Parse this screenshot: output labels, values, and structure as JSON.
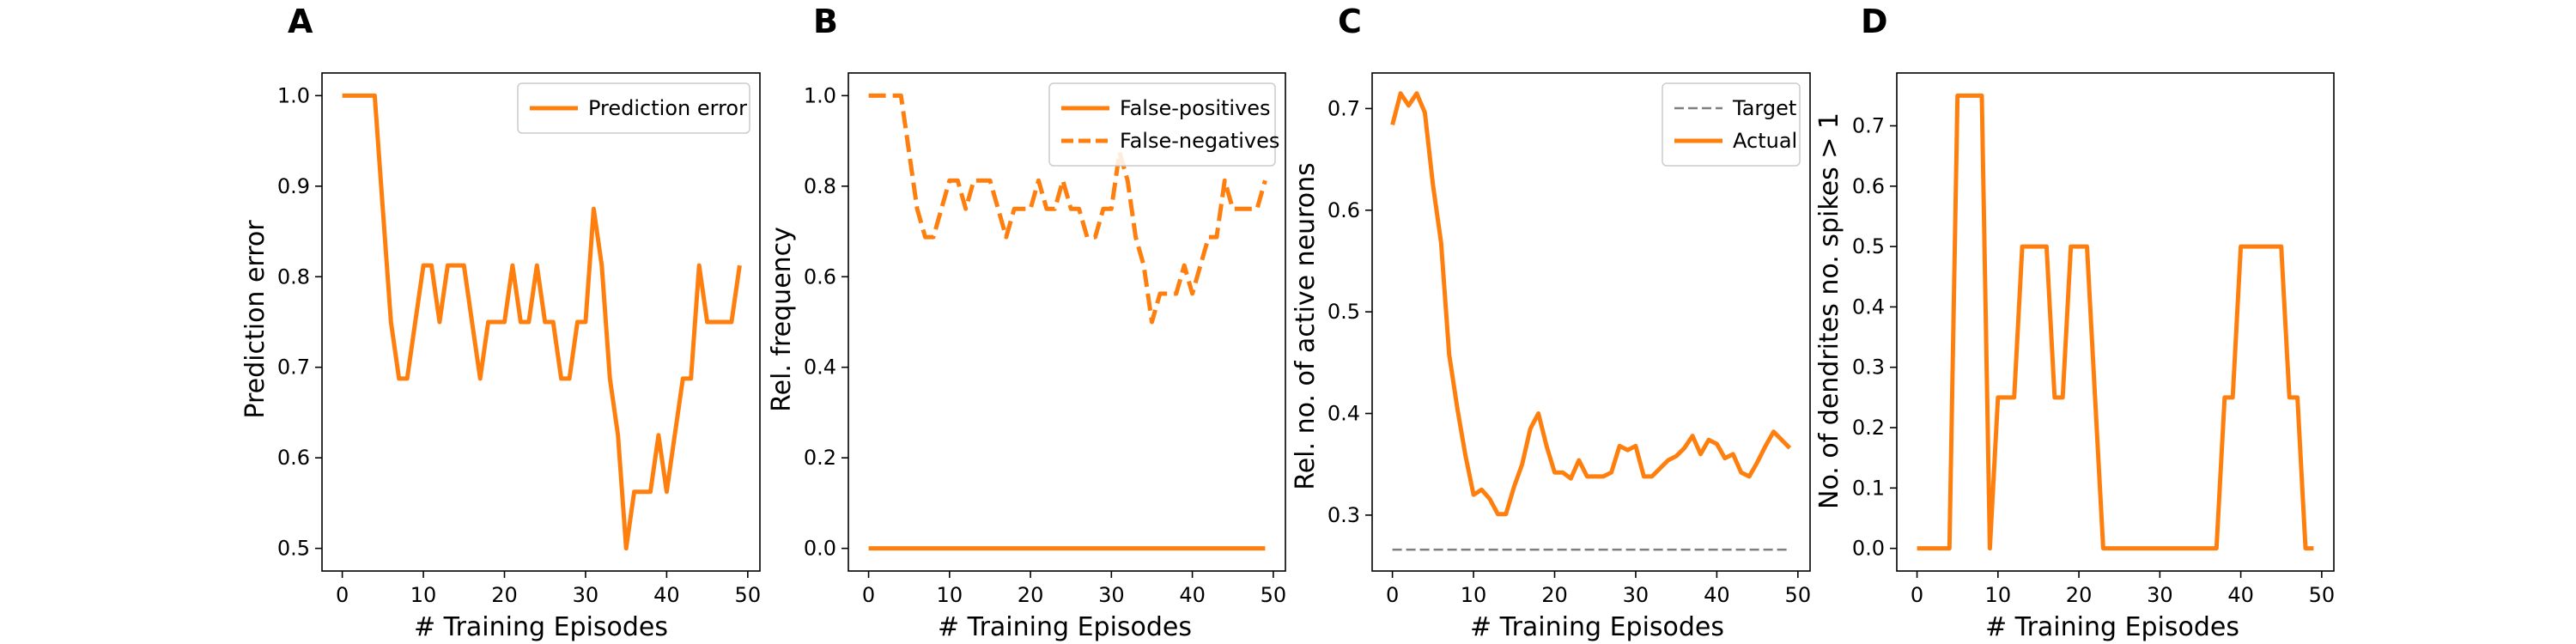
{
  "colors": {
    "series": "#ff7f0e",
    "target": "#7f7f7f",
    "axis": "#000000",
    "legend_border": "#cccccc"
  },
  "chart_data": [
    {
      "panel": "A",
      "type": "line",
      "xlabel": "# Training Episodes",
      "ylabel": "Prediction error",
      "xlim": [
        -2.5,
        51.5
      ],
      "ylim": [
        0.475,
        1.025
      ],
      "xticks": [
        0,
        10,
        20,
        30,
        40,
        50
      ],
      "yticks": [
        0.5,
        0.6,
        0.7,
        0.8,
        0.9,
        1.0
      ],
      "ytick_format": 1,
      "legend": "top-right",
      "x": [
        0,
        1,
        2,
        3,
        4,
        5,
        6,
        7,
        8,
        9,
        10,
        11,
        12,
        13,
        14,
        15,
        16,
        17,
        18,
        19,
        20,
        21,
        22,
        23,
        24,
        25,
        26,
        27,
        28,
        29,
        30,
        31,
        32,
        33,
        34,
        35,
        36,
        37,
        38,
        39,
        40,
        41,
        42,
        43,
        44,
        45,
        46,
        47,
        48,
        49
      ],
      "series": [
        {
          "name": "Prediction error",
          "style": "solid",
          "values": [
            1.0,
            1.0,
            1.0,
            1.0,
            1.0,
            0.875,
            0.75,
            0.6875,
            0.6875,
            0.75,
            0.8125,
            0.8125,
            0.75,
            0.8125,
            0.8125,
            0.8125,
            0.75,
            0.6875,
            0.75,
            0.75,
            0.75,
            0.8125,
            0.75,
            0.75,
            0.8125,
            0.75,
            0.75,
            0.6875,
            0.6875,
            0.75,
            0.75,
            0.875,
            0.8125,
            0.6875,
            0.625,
            0.5,
            0.5625,
            0.5625,
            0.5625,
            0.625,
            0.5625,
            0.625,
            0.6875,
            0.6875,
            0.8125,
            0.75,
            0.75,
            0.75,
            0.75,
            0.8125
          ]
        }
      ]
    },
    {
      "panel": "B",
      "type": "line",
      "xlabel": "# Training Episodes",
      "ylabel": "Rel. frequency",
      "xlim": [
        -2.5,
        51.5
      ],
      "ylim": [
        -0.05,
        1.05
      ],
      "xticks": [
        0,
        10,
        20,
        30,
        40,
        50
      ],
      "yticks": [
        0.0,
        0.2,
        0.4,
        0.6,
        0.8,
        1.0
      ],
      "ytick_format": 1,
      "legend": "top-right",
      "x": [
        0,
        1,
        2,
        3,
        4,
        5,
        6,
        7,
        8,
        9,
        10,
        11,
        12,
        13,
        14,
        15,
        16,
        17,
        18,
        19,
        20,
        21,
        22,
        23,
        24,
        25,
        26,
        27,
        28,
        29,
        30,
        31,
        32,
        33,
        34,
        35,
        36,
        37,
        38,
        39,
        40,
        41,
        42,
        43,
        44,
        45,
        46,
        47,
        48,
        49
      ],
      "series": [
        {
          "name": "False-positives",
          "style": "solid",
          "values": [
            0,
            0,
            0,
            0,
            0,
            0,
            0,
            0,
            0,
            0,
            0,
            0,
            0,
            0,
            0,
            0,
            0,
            0,
            0,
            0,
            0,
            0,
            0,
            0,
            0,
            0,
            0,
            0,
            0,
            0,
            0,
            0,
            0,
            0,
            0,
            0,
            0,
            0,
            0,
            0,
            0,
            0,
            0,
            0,
            0,
            0,
            0,
            0,
            0,
            0
          ]
        },
        {
          "name": "False-negatives",
          "style": "dashed",
          "values": [
            1.0,
            1.0,
            1.0,
            1.0,
            1.0,
            0.875,
            0.75,
            0.6875,
            0.6875,
            0.75,
            0.8125,
            0.8125,
            0.75,
            0.8125,
            0.8125,
            0.8125,
            0.75,
            0.6875,
            0.75,
            0.75,
            0.75,
            0.8125,
            0.75,
            0.75,
            0.8125,
            0.75,
            0.75,
            0.6875,
            0.6875,
            0.75,
            0.75,
            0.875,
            0.8125,
            0.6875,
            0.625,
            0.5,
            0.5625,
            0.5625,
            0.5625,
            0.625,
            0.5625,
            0.625,
            0.6875,
            0.6875,
            0.8125,
            0.75,
            0.75,
            0.75,
            0.75,
            0.8125
          ]
        }
      ]
    },
    {
      "panel": "C",
      "type": "line",
      "xlabel": "# Training Episodes",
      "ylabel": "Rel. no. of active neurons",
      "xlim": [
        -2.5,
        51.5
      ],
      "ylim": [
        0.245,
        0.735
      ],
      "xticks": [
        0,
        10,
        20,
        30,
        40,
        50
      ],
      "yticks": [
        0.3,
        0.4,
        0.5,
        0.6,
        0.7
      ],
      "ytick_format": 1,
      "legend": "top-right",
      "x": [
        0,
        1,
        2,
        3,
        4,
        5,
        6,
        7,
        8,
        9,
        10,
        11,
        12,
        13,
        14,
        15,
        16,
        17,
        18,
        19,
        20,
        21,
        22,
        23,
        24,
        25,
        26,
        27,
        28,
        29,
        30,
        31,
        32,
        33,
        34,
        35,
        36,
        37,
        38,
        39,
        40,
        41,
        42,
        43,
        44,
        45,
        46,
        47,
        48,
        49
      ],
      "series": [
        {
          "name": "Target",
          "style": "dashed-thin",
          "color_key": "target",
          "values": [
            0.266,
            0.266,
            0.266,
            0.266,
            0.266,
            0.266,
            0.266,
            0.266,
            0.266,
            0.266,
            0.266,
            0.266,
            0.266,
            0.266,
            0.266,
            0.266,
            0.266,
            0.266,
            0.266,
            0.266,
            0.266,
            0.266,
            0.266,
            0.266,
            0.266,
            0.266,
            0.266,
            0.266,
            0.266,
            0.266,
            0.266,
            0.266,
            0.266,
            0.266,
            0.266,
            0.266,
            0.266,
            0.266,
            0.266,
            0.266,
            0.266,
            0.266,
            0.266,
            0.266,
            0.266,
            0.266,
            0.266,
            0.266,
            0.266,
            0.266
          ]
        },
        {
          "name": "Actual",
          "style": "solid",
          "values": [
            0.684,
            0.715,
            0.703,
            0.715,
            0.696,
            0.625,
            0.568,
            0.458,
            0.405,
            0.359,
            0.32,
            0.325,
            0.316,
            0.301,
            0.301,
            0.328,
            0.35,
            0.385,
            0.4,
            0.368,
            0.342,
            0.342,
            0.336,
            0.354,
            0.338,
            0.338,
            0.338,
            0.342,
            0.368,
            0.364,
            0.368,
            0.338,
            0.338,
            0.346,
            0.354,
            0.358,
            0.366,
            0.378,
            0.36,
            0.374,
            0.37,
            0.356,
            0.36,
            0.342,
            0.338,
            0.352,
            0.368,
            0.382,
            0.374,
            0.366
          ]
        }
      ]
    },
    {
      "panel": "D",
      "type": "line",
      "xlabel": "# Training Episodes",
      "ylabel": "No. of dendrites no. spikes > 1",
      "xlim": [
        -2.5,
        51.5
      ],
      "ylim": [
        -0.0375,
        0.7875
      ],
      "xticks": [
        0,
        10,
        20,
        30,
        40,
        50
      ],
      "yticks": [
        0.0,
        0.1,
        0.2,
        0.3,
        0.4,
        0.5,
        0.6,
        0.7
      ],
      "ytick_format": 1,
      "legend": null,
      "x": [
        0,
        1,
        2,
        3,
        4,
        5,
        6,
        7,
        8,
        9,
        10,
        11,
        12,
        13,
        14,
        15,
        16,
        17,
        18,
        19,
        20,
        21,
        22,
        23,
        24,
        25,
        26,
        27,
        28,
        29,
        30,
        31,
        32,
        33,
        34,
        35,
        36,
        37,
        38,
        39,
        40,
        41,
        42,
        43,
        44,
        45,
        46,
        47,
        48,
        49
      ],
      "series": [
        {
          "name": "",
          "style": "solid",
          "values": [
            0,
            0,
            0,
            0,
            0,
            0.75,
            0.75,
            0.75,
            0.75,
            0,
            0.25,
            0.25,
            0.25,
            0.5,
            0.5,
            0.5,
            0.5,
            0.25,
            0.25,
            0.5,
            0.5,
            0.5,
            0.25,
            0,
            0,
            0,
            0,
            0,
            0,
            0,
            0,
            0,
            0,
            0,
            0,
            0,
            0,
            0,
            0.25,
            0.25,
            0.5,
            0.5,
            0.5,
            0.5,
            0.5,
            0.5,
            0.25,
            0.25,
            0,
            0
          ]
        }
      ]
    }
  ]
}
